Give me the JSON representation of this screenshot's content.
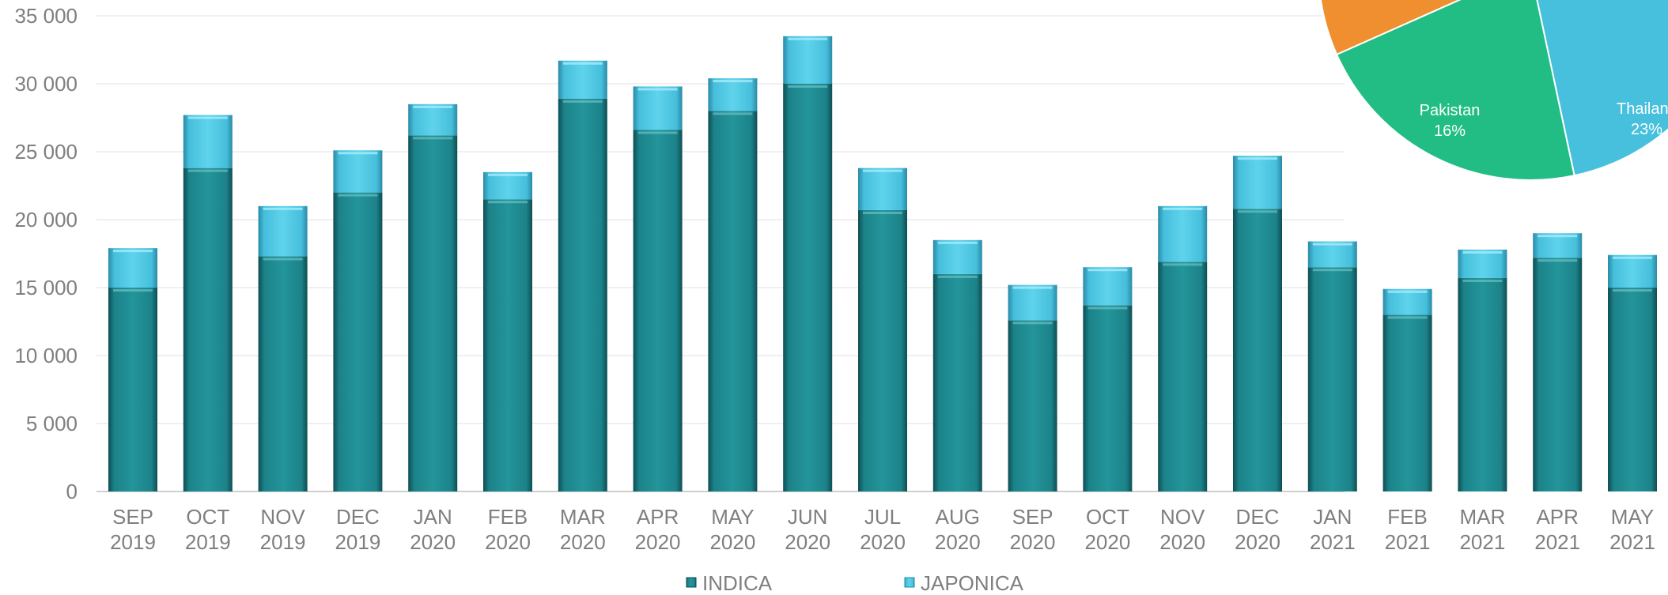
{
  "chart_data": [
    {
      "type": "bar",
      "stacked": true,
      "categories": [
        [
          "SEP",
          "2019"
        ],
        [
          "OCT",
          "2019"
        ],
        [
          "NOV",
          "2019"
        ],
        [
          "DEC",
          "2019"
        ],
        [
          "JAN",
          "2020"
        ],
        [
          "FEB",
          "2020"
        ],
        [
          "MAR",
          "2020"
        ],
        [
          "APR",
          "2020"
        ],
        [
          "MAY",
          "2020"
        ],
        [
          "JUN",
          "2020"
        ],
        [
          "JUL",
          "2020"
        ],
        [
          "AUG",
          "2020"
        ],
        [
          "SEP",
          "2020"
        ],
        [
          "OCT",
          "2020"
        ],
        [
          "NOV",
          "2020"
        ],
        [
          "DEC",
          "2020"
        ],
        [
          "JAN",
          "2021"
        ],
        [
          "FEB",
          "2021"
        ],
        [
          "MAR",
          "2021"
        ],
        [
          "APR",
          "2021"
        ],
        [
          "MAY",
          "2021"
        ]
      ],
      "series": [
        {
          "name": "INDICA",
          "color": "#1f8a90",
          "values": [
            15000,
            23800,
            17300,
            22000,
            26200,
            21500,
            28900,
            26600,
            28000,
            30000,
            20700,
            16000,
            12600,
            13700,
            16900,
            20800,
            16500,
            13000,
            15700,
            17200,
            15000
          ]
        },
        {
          "name": "JAPONICA",
          "color": "#4ec6e0",
          "values": [
            2900,
            3900,
            3700,
            3100,
            2300,
            2000,
            2800,
            3200,
            2400,
            3500,
            3100,
            2500,
            2600,
            2800,
            4100,
            3900,
            1900,
            1900,
            2100,
            1800,
            2400
          ]
        }
      ],
      "yticks": [
        "0",
        "5 000",
        "10 000",
        "15 000",
        "20 000",
        "25 000",
        "30 000",
        "35 000"
      ],
      "ylim": [
        0,
        35000
      ],
      "grid": true,
      "legend_position": "bottom"
    },
    {
      "type": "pie",
      "partially_visible": true,
      "slices": [
        {
          "label": "Pakistan",
          "percent_label": "16%",
          "value": 16,
          "color": "#22bd85"
        },
        {
          "label": "Thailan",
          "percent_label": "23%",
          "value": 23,
          "color": "#46c0dc"
        },
        {
          "label": "",
          "percent_label": "",
          "value": null,
          "color": "#ef8f2f"
        }
      ]
    }
  ]
}
